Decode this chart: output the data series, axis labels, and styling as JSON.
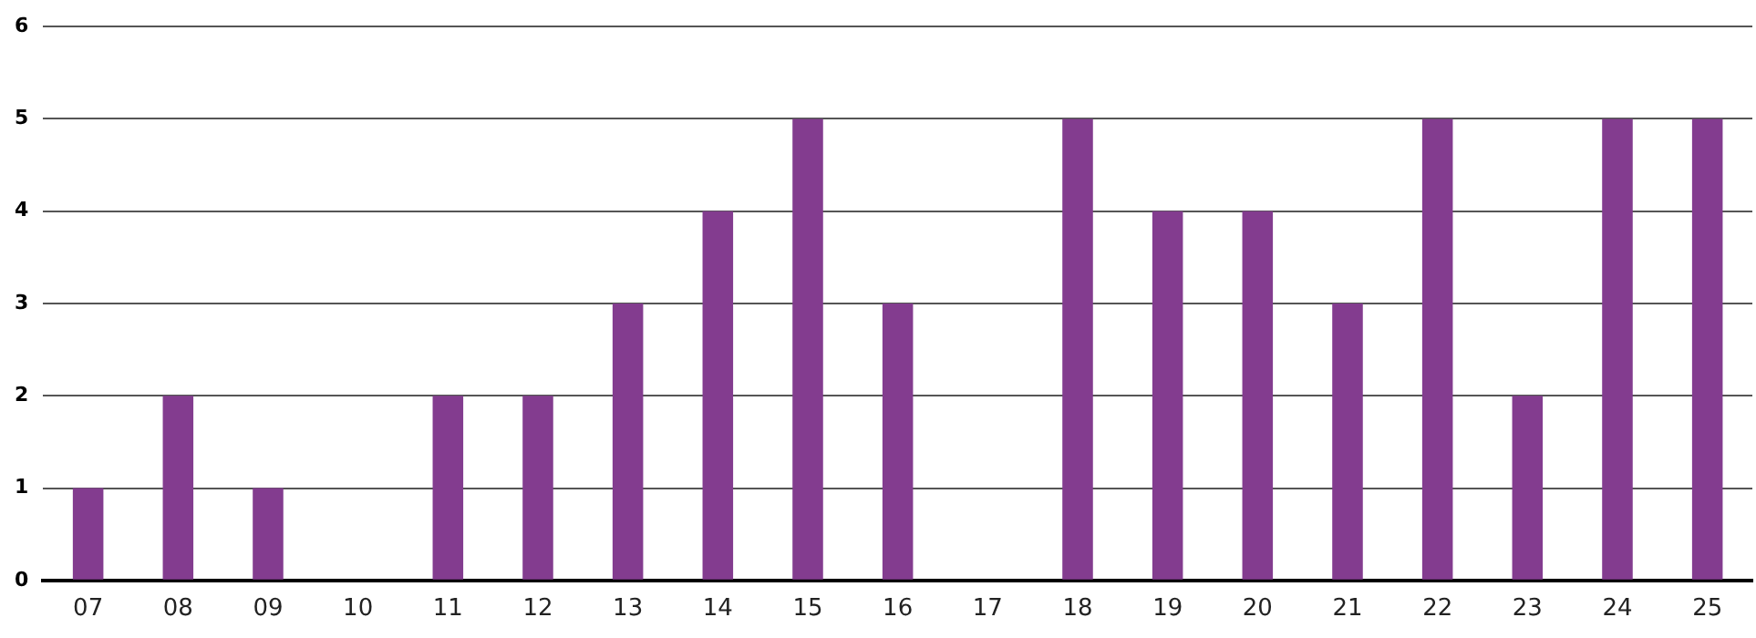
{
  "chart_data": {
    "type": "bar",
    "categories": [
      "07",
      "08",
      "09",
      "10",
      "11",
      "12",
      "13",
      "14",
      "15",
      "16",
      "17",
      "18",
      "19",
      "20",
      "21",
      "22",
      "23",
      "24",
      "25"
    ],
    "values": [
      1,
      2,
      1,
      0,
      2,
      2,
      3,
      4,
      5,
      3,
      0,
      5,
      4,
      4,
      3,
      5,
      2,
      5,
      5
    ],
    "color": "#833c8f",
    "ylim": [
      0,
      6
    ],
    "yticks": [
      0,
      1,
      2,
      3,
      4,
      5,
      6
    ],
    "grid": "y",
    "legend": false
  }
}
